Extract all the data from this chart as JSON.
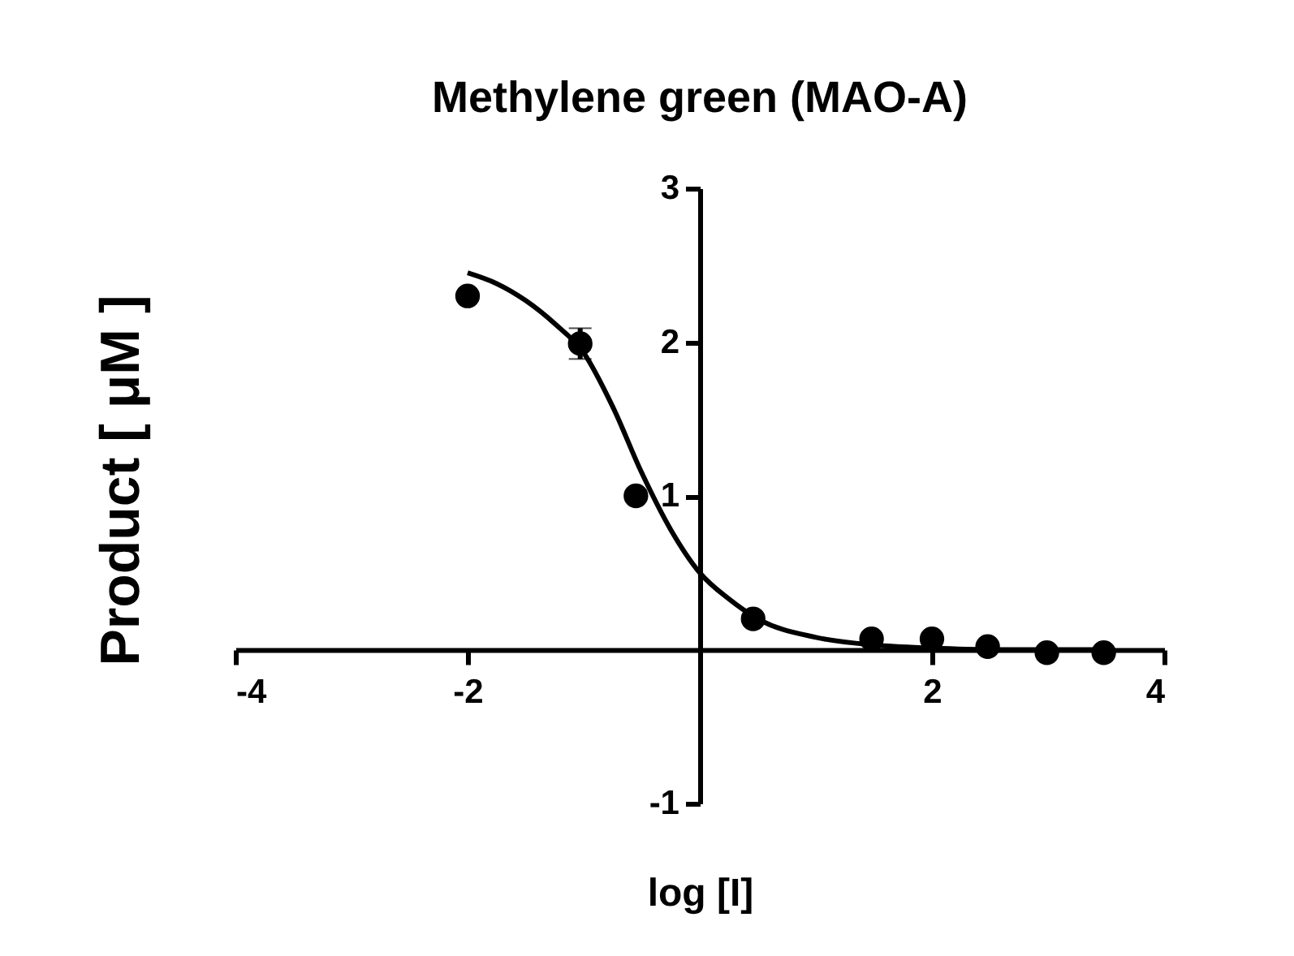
{
  "chart_data": {
    "type": "scatter",
    "title": "Methylene green (MAO-A)",
    "xlabel": "log [I]",
    "ylabel": "Product [ μM ]",
    "xlim": [
      -4,
      4
    ],
    "ylim": [
      -1,
      3
    ],
    "xticks": [
      -4,
      -2,
      2,
      4
    ],
    "yticks": [
      -1,
      1,
      2,
      3
    ],
    "marker": "circle",
    "series": [
      {
        "color": "#000000",
        "x": [
          -2,
          -1.03,
          -0.55,
          0.46,
          1.48,
          2.0,
          2.48,
          2.99,
          3.48
        ],
        "values": [
          2.3,
          1.99,
          1.0,
          0.2,
          0.07,
          0.07,
          0.02,
          -0.02,
          -0.02
        ],
        "errors": [
          null,
          0.1,
          null,
          null,
          null,
          null,
          null,
          null,
          null
        ]
      },
      {
        "type": "line",
        "marker": "none",
        "color": "#000000",
        "line_style": "solid",
        "x": [
          -2,
          -1.75,
          -1.5,
          -1.25,
          -1,
          -0.75,
          -0.5,
          -0.25,
          0,
          0.25,
          0.5,
          1,
          1.5,
          2,
          2.5,
          3,
          3.5
        ],
        "values": [
          2.45,
          2.38,
          2.27,
          2.12,
          1.93,
          1.58,
          1.15,
          0.78,
          0.5,
          0.33,
          0.2,
          0.08,
          0.03,
          0.01,
          0,
          0,
          0
        ]
      }
    ]
  }
}
